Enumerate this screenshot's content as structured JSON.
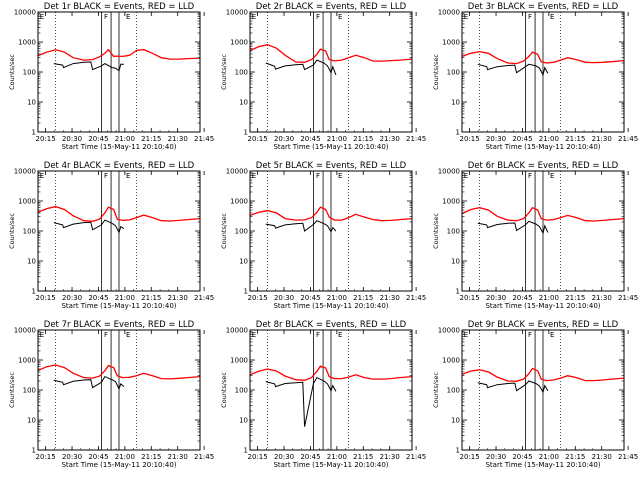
{
  "chart_data": [
    {
      "type": "line",
      "detector": "1r",
      "title": "Det 1r BLACK = Events, RED = LLD",
      "xlabel": "Start Time (15-May-11 20:10:40)",
      "ylabel": "Counts/sec",
      "x_ticks": [
        "20:15",
        "20:30",
        "20:45",
        "21:00",
        "21:15",
        "21:30",
        "21:45"
      ],
      "y_ticks": [
        "1",
        "10",
        "100",
        "1000",
        "10000"
      ],
      "xlim_minutes": [
        0,
        92
      ],
      "ylim": [
        1,
        10000
      ],
      "yscale": "log",
      "markers": [
        "E",
        "F",
        "E"
      ],
      "series": [
        {
          "name": "Events",
          "color": "#000000",
          "t": [
            9,
            14,
            14.5,
            20,
            26,
            30,
            31,
            36,
            38,
            42,
            44,
            46,
            47,
            48.8
          ],
          "v": [
            190,
            170,
            140,
            190,
            210,
            215,
            120,
            160,
            190,
            140,
            135,
            110,
            180,
            180
          ]
        },
        {
          "name": "LLD",
          "color": "#ff0000",
          "t": [
            0,
            5,
            10,
            15,
            20,
            26,
            31,
            35,
            38,
            40,
            43,
            45,
            48,
            52,
            56,
            60,
            65,
            70,
            75,
            80,
            85,
            92
          ],
          "v": [
            350,
            460,
            550,
            460,
            300,
            250,
            260,
            320,
            420,
            560,
            330,
            340,
            330,
            360,
            520,
            560,
            420,
            300,
            270,
            270,
            280,
            290
          ]
        }
      ]
    },
    {
      "type": "line",
      "detector": "2r",
      "title": "Det 2r BLACK = Events, RED = LLD",
      "xlabel": "Start Time (15-May-11 20:10:40)",
      "ylabel": "Counts/sec",
      "x_ticks": [
        "20:15",
        "20:30",
        "20:45",
        "21:00",
        "21:15",
        "21:30",
        "21:45"
      ],
      "y_ticks": [
        "1",
        "10",
        "100",
        "1000",
        "10000"
      ],
      "xlim_minutes": [
        0,
        92
      ],
      "ylim": [
        1,
        10000
      ],
      "yscale": "log",
      "markers": [
        "E",
        "F",
        "E"
      ],
      "series": [
        {
          "name": "Events",
          "color": "#000000",
          "t": [
            9,
            14,
            14.5,
            20,
            26,
            30,
            31,
            36,
            38,
            42,
            44,
            46,
            47,
            48.8
          ],
          "v": [
            200,
            155,
            125,
            160,
            175,
            180,
            120,
            170,
            250,
            200,
            160,
            95,
            150,
            80
          ]
        },
        {
          "name": "LLD",
          "color": "#ff0000",
          "t": [
            0,
            5,
            10,
            15,
            20,
            26,
            31,
            35,
            38,
            40,
            43,
            45,
            48,
            52,
            56,
            60,
            65,
            70,
            75,
            80,
            85,
            92
          ],
          "v": [
            520,
            700,
            810,
            620,
            360,
            215,
            210,
            260,
            390,
            580,
            500,
            260,
            235,
            250,
            300,
            360,
            300,
            230,
            230,
            240,
            250,
            270
          ]
        }
      ]
    },
    {
      "type": "line",
      "detector": "3r",
      "title": "Det 3r BLACK = Events, RED = LLD",
      "xlabel": "Start Time (15-May-11 20:10:40)",
      "ylabel": "Counts/sec",
      "x_ticks": [
        "20:15",
        "20:30",
        "20:45",
        "21:00",
        "21:15",
        "21:30",
        "21:45"
      ],
      "y_ticks": [
        "1",
        "10",
        "100",
        "1000",
        "10000"
      ],
      "xlim_minutes": [
        0,
        92
      ],
      "ylim": [
        1,
        10000
      ],
      "yscale": "log",
      "markers": [
        "E",
        "F",
        "E"
      ],
      "series": [
        {
          "name": "Events",
          "color": "#000000",
          "t": [
            9,
            14,
            14.5,
            20,
            26,
            30,
            31,
            36,
            38,
            42,
            44,
            46,
            47,
            48.8
          ],
          "v": [
            180,
            150,
            120,
            150,
            165,
            170,
            95,
            150,
            180,
            160,
            135,
            80,
            140,
            90
          ]
        },
        {
          "name": "LLD",
          "color": "#ff0000",
          "t": [
            0,
            5,
            10,
            15,
            20,
            26,
            31,
            35,
            38,
            40,
            43,
            45,
            48,
            52,
            56,
            60,
            65,
            70,
            75,
            80,
            85,
            92
          ],
          "v": [
            330,
            420,
            480,
            420,
            280,
            200,
            190,
            230,
            330,
            460,
            390,
            220,
            200,
            210,
            250,
            300,
            260,
            210,
            205,
            210,
            220,
            240
          ]
        }
      ]
    },
    {
      "type": "line",
      "detector": "4r",
      "title": "Det 4r BLACK = Events, RED = LLD",
      "xlabel": "Start Time (15-May-11 20:10:40)",
      "ylabel": "Counts/sec",
      "x_ticks": [
        "20:15",
        "20:30",
        "20:45",
        "21:00",
        "21:15",
        "21:30",
        "21:45"
      ],
      "y_ticks": [
        "1",
        "10",
        "100",
        "1000",
        "10000"
      ],
      "xlim_minutes": [
        0,
        92
      ],
      "ylim": [
        1,
        10000
      ],
      "yscale": "log",
      "markers": [
        "E",
        "F",
        "E"
      ],
      "series": [
        {
          "name": "Events",
          "color": "#000000",
          "t": [
            9,
            14,
            14.5,
            20,
            26,
            30,
            31,
            36,
            38,
            42,
            44,
            46,
            47,
            48.8
          ],
          "v": [
            190,
            160,
            130,
            170,
            190,
            195,
            110,
            160,
            230,
            180,
            150,
            90,
            140,
            120
          ]
        },
        {
          "name": "LLD",
          "color": "#ff0000",
          "t": [
            0,
            5,
            10,
            15,
            20,
            26,
            31,
            35,
            38,
            40,
            43,
            45,
            48,
            52,
            56,
            60,
            65,
            70,
            75,
            80,
            85,
            92
          ],
          "v": [
            420,
            560,
            650,
            520,
            320,
            220,
            210,
            250,
            400,
            620,
            520,
            250,
            225,
            235,
            280,
            340,
            280,
            220,
            215,
            225,
            240,
            260
          ]
        }
      ]
    },
    {
      "type": "line",
      "detector": "5r",
      "title": "Det 5r BLACK = Events, RED = LLD",
      "xlabel": "Start Time (15-May-11 20:10:40)",
      "ylabel": "Counts/sec",
      "x_ticks": [
        "20:15",
        "20:30",
        "20:45",
        "21:00",
        "21:15",
        "21:30",
        "21:45"
      ],
      "y_ticks": [
        "1",
        "10",
        "100",
        "1000",
        "10000"
      ],
      "xlim_minutes": [
        0,
        92
      ],
      "ylim": [
        1,
        10000
      ],
      "yscale": "log",
      "markers": [
        "E",
        "F",
        "E"
      ],
      "series": [
        {
          "name": "Events",
          "color": "#000000",
          "t": [
            9,
            14,
            14.5,
            20,
            26,
            30,
            31,
            36,
            38,
            42,
            44,
            46,
            47,
            48.8
          ],
          "v": [
            170,
            150,
            125,
            160,
            175,
            180,
            100,
            165,
            220,
            175,
            150,
            95,
            130,
            100
          ]
        },
        {
          "name": "LLD",
          "color": "#ff0000",
          "t": [
            0,
            5,
            10,
            15,
            20,
            26,
            31,
            35,
            38,
            40,
            43,
            45,
            48,
            52,
            56,
            60,
            65,
            70,
            75,
            80,
            85,
            92
          ],
          "v": [
            330,
            420,
            480,
            400,
            260,
            230,
            235,
            280,
            420,
            620,
            520,
            290,
            230,
            230,
            280,
            360,
            290,
            240,
            220,
            225,
            240,
            260
          ]
        }
      ]
    },
    {
      "type": "line",
      "detector": "6r",
      "title": "Det 6r BLACK = Events, RED = LLD",
      "xlabel": "Start Time (15-May-11 20:10:40)",
      "ylabel": "Counts/sec",
      "x_ticks": [
        "20:15",
        "20:30",
        "20:45",
        "21:00",
        "21:15",
        "21:30",
        "21:45"
      ],
      "y_ticks": [
        "1",
        "10",
        "100",
        "1000",
        "10000"
      ],
      "xlim_minutes": [
        0,
        92
      ],
      "ylim": [
        1,
        10000
      ],
      "yscale": "log",
      "markers": [
        "E",
        "F",
        "E"
      ],
      "series": [
        {
          "name": "Events",
          "color": "#000000",
          "t": [
            9,
            14,
            14.5,
            20,
            26,
            30,
            31,
            36,
            38,
            42,
            44,
            46,
            47,
            48.8
          ],
          "v": [
            180,
            160,
            130,
            165,
            180,
            185,
            105,
            160,
            210,
            170,
            140,
            85,
            150,
            90
          ]
        },
        {
          "name": "LLD",
          "color": "#ff0000",
          "t": [
            0,
            5,
            10,
            15,
            20,
            26,
            31,
            35,
            38,
            40,
            43,
            45,
            48,
            52,
            56,
            60,
            65,
            70,
            75,
            80,
            85,
            92
          ],
          "v": [
            380,
            520,
            600,
            500,
            310,
            230,
            220,
            260,
            400,
            600,
            500,
            260,
            230,
            240,
            280,
            330,
            280,
            220,
            215,
            225,
            240,
            260
          ]
        }
      ]
    },
    {
      "type": "line",
      "detector": "7r",
      "title": "Det 7r BLACK = Events, RED = LLD",
      "xlabel": "Start Time (15-May-11 20:10:40)",
      "ylabel": "Counts/sec",
      "x_ticks": [
        "20:15",
        "20:30",
        "20:45",
        "21:00",
        "21:15",
        "21:30",
        "21:45"
      ],
      "y_ticks": [
        "1",
        "10",
        "100",
        "1000",
        "10000"
      ],
      "xlim_minutes": [
        0,
        92
      ],
      "ylim": [
        1,
        10000
      ],
      "yscale": "log",
      "markers": [
        "E",
        "F",
        "E"
      ],
      "series": [
        {
          "name": "Events",
          "color": "#000000",
          "t": [
            9,
            14,
            14.5,
            20,
            26,
            30,
            31,
            36,
            38,
            42,
            44,
            46,
            47,
            48.8
          ],
          "v": [
            210,
            180,
            150,
            195,
            215,
            220,
            120,
            180,
            280,
            220,
            190,
            110,
            160,
            130
          ]
        },
        {
          "name": "LLD",
          "color": "#ff0000",
          "t": [
            0,
            5,
            10,
            15,
            20,
            26,
            31,
            35,
            38,
            40,
            43,
            45,
            48,
            52,
            56,
            60,
            65,
            70,
            75,
            80,
            85,
            92
          ],
          "v": [
            450,
            600,
            680,
            560,
            360,
            260,
            250,
            290,
            440,
            650,
            560,
            300,
            260,
            265,
            300,
            360,
            300,
            240,
            235,
            245,
            260,
            280
          ]
        }
      ]
    },
    {
      "type": "line",
      "detector": "8r",
      "title": "Det 8r BLACK = Events, RED = LLD",
      "xlabel": "Start Time (15-May-11 20:10:40)",
      "ylabel": "Counts/sec",
      "x_ticks": [
        "20:15",
        "20:30",
        "20:45",
        "21:00",
        "21:15",
        "21:30",
        "21:45"
      ],
      "y_ticks": [
        "1",
        "10",
        "100",
        "1000",
        "10000"
      ],
      "xlim_minutes": [
        0,
        92
      ],
      "ylim": [
        1,
        10000
      ],
      "yscale": "log",
      "markers": [
        "E",
        "F",
        "E"
      ],
      "series": [
        {
          "name": "Events",
          "color": "#000000",
          "t": [
            9,
            14,
            14.5,
            20,
            26,
            30,
            31,
            36,
            38,
            42,
            44,
            46,
            47,
            48.8
          ],
          "v": [
            190,
            160,
            130,
            165,
            175,
            180,
            6,
            165,
            260,
            200,
            160,
            95,
            140,
            90
          ]
        },
        {
          "name": "LLD",
          "color": "#ff0000",
          "t": [
            0,
            5,
            10,
            15,
            20,
            26,
            31,
            35,
            38,
            40,
            43,
            45,
            48,
            52,
            56,
            60,
            65,
            70,
            75,
            80,
            85,
            92
          ],
          "v": [
            320,
            420,
            500,
            430,
            290,
            220,
            210,
            260,
            420,
            620,
            540,
            280,
            240,
            240,
            270,
            320,
            260,
            230,
            230,
            240,
            260,
            280
          ]
        }
      ]
    },
    {
      "type": "line",
      "detector": "9r",
      "title": "Det 9r BLACK = Events, RED = LLD",
      "xlabel": "Start Time (15-May-11 20:10:40)",
      "ylabel": "Counts/sec",
      "x_ticks": [
        "20:15",
        "20:30",
        "20:45",
        "21:00",
        "21:15",
        "21:30",
        "21:45"
      ],
      "y_ticks": [
        "1",
        "10",
        "100",
        "1000",
        "10000"
      ],
      "xlim_minutes": [
        0,
        92
      ],
      "ylim": [
        1,
        10000
      ],
      "yscale": "log",
      "markers": [
        "E",
        "F",
        "E"
      ],
      "series": [
        {
          "name": "Events",
          "color": "#000000",
          "t": [
            9,
            14,
            14.5,
            20,
            26,
            30,
            31,
            36,
            38,
            42,
            44,
            46,
            47,
            48.8
          ],
          "v": [
            175,
            150,
            120,
            150,
            165,
            170,
            95,
            150,
            200,
            165,
            135,
            85,
            140,
            95
          ]
        },
        {
          "name": "LLD",
          "color": "#ff0000",
          "t": [
            0,
            5,
            10,
            15,
            20,
            26,
            31,
            35,
            38,
            40,
            43,
            45,
            48,
            52,
            56,
            60,
            65,
            70,
            75,
            80,
            85,
            92
          ],
          "v": [
            330,
            430,
            470,
            400,
            270,
            200,
            195,
            230,
            350,
            520,
            440,
            230,
            205,
            215,
            250,
            300,
            260,
            205,
            205,
            215,
            230,
            250
          ]
        }
      ]
    }
  ]
}
